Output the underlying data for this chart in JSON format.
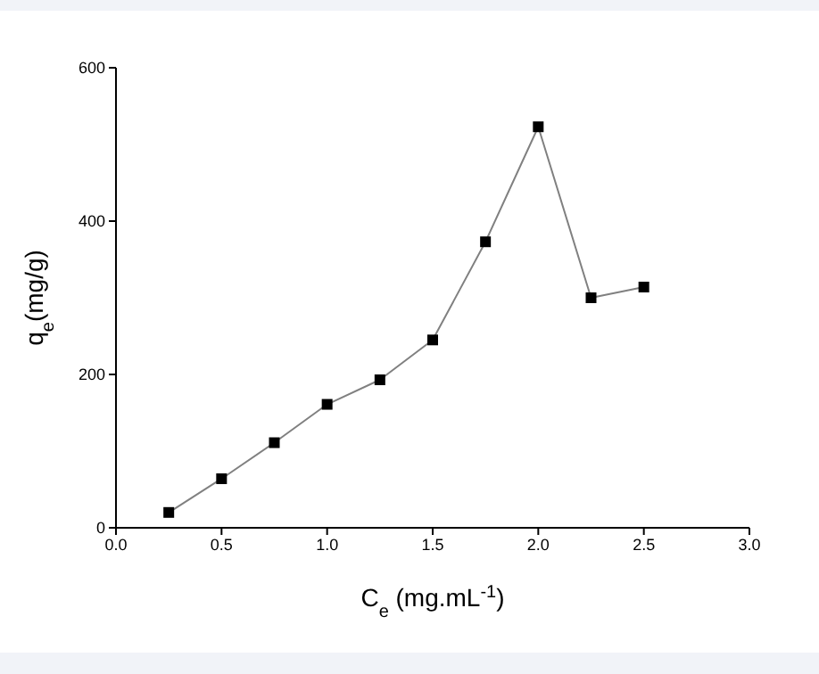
{
  "chart_data": {
    "type": "line",
    "xlabel": "C$_{e}$ (mg.mL$^{-1}$)",
    "ylabel": "q$_{e}$(mg/g)",
    "x": [
      0.25,
      0.5,
      0.75,
      1.0,
      1.25,
      1.5,
      1.75,
      2.0,
      2.25,
      2.5
    ],
    "series": [
      {
        "color": "#000000",
        "values": [
          20,
          64,
          111,
          161,
          193,
          245,
          373,
          523,
          300,
          314
        ]
      }
    ],
    "xlim": [
      0,
      3
    ],
    "xticks": [
      {
        "value": 0,
        "label": "0.0"
      },
      0.5,
      {
        "value": 1,
        "label": "1.0"
      },
      1.5,
      {
        "value": 2,
        "label": "2.0"
      },
      2.5,
      {
        "value": 3,
        "label": "3.0"
      }
    ],
    "ylim": [
      0,
      600
    ],
    "yticks": [
      0,
      200,
      400,
      600
    ],
    "marker": "square",
    "line_style": "solid"
  }
}
